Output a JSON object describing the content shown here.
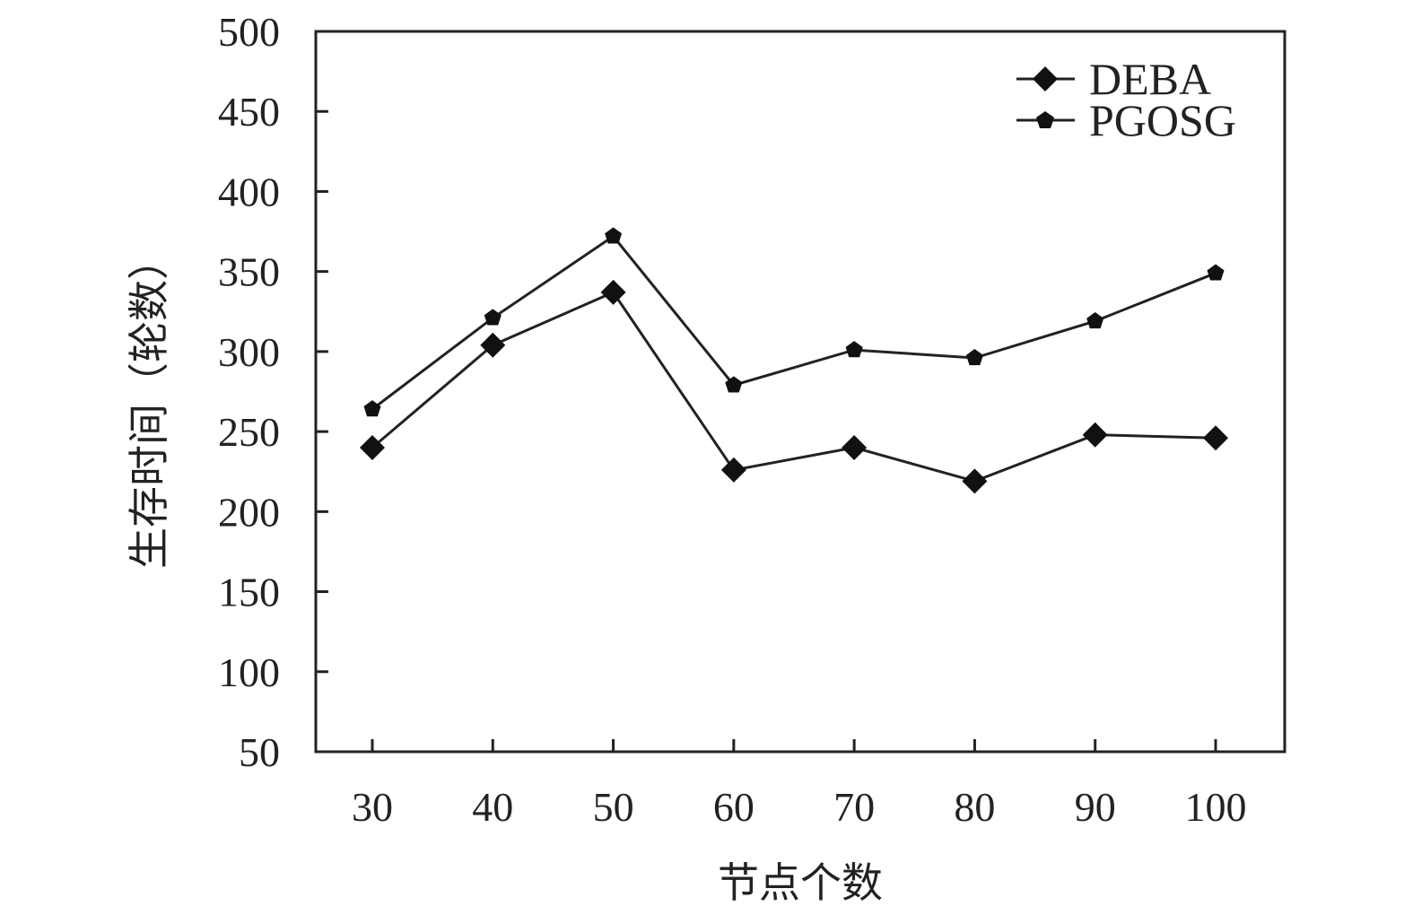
{
  "chart_data": {
    "type": "line",
    "title": "",
    "xlabel": "节点个数",
    "ylabel": "生存时间（轮数）",
    "x": [
      30,
      40,
      50,
      60,
      70,
      80,
      90,
      100
    ],
    "x_tick_labels": [
      "30",
      "40",
      "50",
      "60",
      "70",
      "80",
      "90",
      "100"
    ],
    "ylim": [
      50,
      500
    ],
    "y_ticks": [
      50,
      100,
      150,
      200,
      250,
      300,
      350,
      400,
      450,
      500
    ],
    "y_tick_labels": [
      "50",
      "100",
      "150",
      "200",
      "250",
      "300",
      "350",
      "400",
      "450",
      "500"
    ],
    "grid": false,
    "legend_position": "top-right",
    "series": [
      {
        "name": "DEBA",
        "marker": "diamond",
        "values": [
          240,
          304,
          337,
          226,
          240,
          219,
          248,
          246
        ]
      },
      {
        "name": "PGOSG",
        "marker": "pentagon",
        "values": [
          264,
          321,
          372,
          279,
          301,
          296,
          319,
          349
        ]
      }
    ],
    "colors": {
      "line": "#222222",
      "axis": "#222222",
      "background": "#ffffff"
    }
  }
}
